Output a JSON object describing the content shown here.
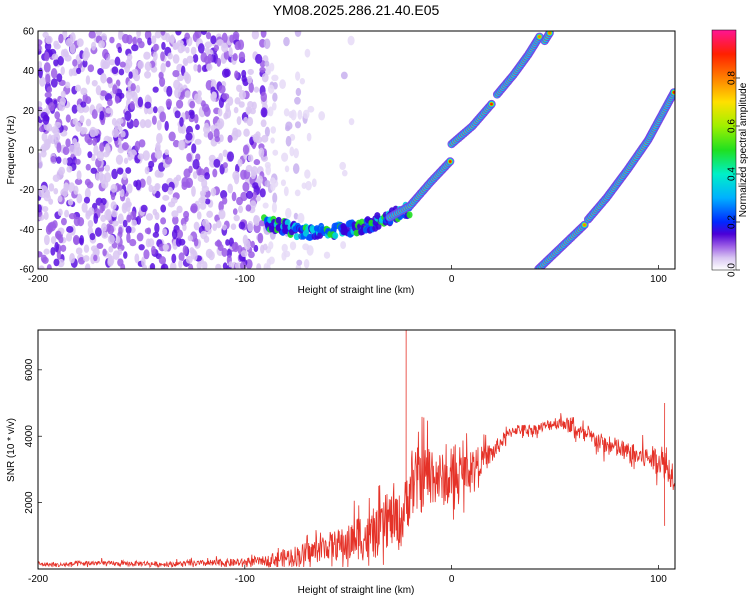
{
  "title": "YM08.2025.286.21.40.E05",
  "colorbar": {
    "label": "Normalized spectral amplitude",
    "ticks": [
      "0.0",
      "0.2",
      "0.4",
      "0.6",
      "0.8"
    ]
  },
  "colors": {
    "snr_line": "#e53228",
    "background": "#ffffff",
    "colormap": [
      "#ffffff",
      "#d9c6f2",
      "#9b5de5",
      "#4b00d6",
      "#0028ff",
      "#00b0ff",
      "#00f0c8",
      "#20e020",
      "#a0f000",
      "#ffe000",
      "#ff8000",
      "#ff2000",
      "#ff1493"
    ]
  },
  "chart_data": [
    {
      "type": "heatmap",
      "title": "YM08.2025.286.21.40.E05",
      "xlabel": "Height of straight line (km)",
      "ylabel": "Frequency (Hz)",
      "xlim": [
        -200,
        108
      ],
      "ylim": [
        -60,
        60
      ],
      "xticks": [
        "-200",
        "-100",
        "0",
        "100"
      ],
      "yticks": [
        "-60",
        "-40",
        "-20",
        "0",
        "20",
        "40",
        "60"
      ],
      "colorbar_label": "Normalized spectral amplitude",
      "colorbar_range": [
        0,
        1
      ],
      "noise_region": {
        "x": [
          -200,
          -68
        ],
        "y": [
          -60,
          60
        ],
        "amplitude": 0.1
      },
      "traces": [
        {
          "amplitude": 0.2,
          "points": [
            [
              -90,
              -37
            ],
            [
              -80,
              -39
            ],
            [
              -70,
              -42
            ],
            [
              -60,
              -41
            ],
            [
              -50,
              -40
            ],
            [
              -40,
              -38
            ],
            [
              -30,
              -34
            ],
            [
              -20,
              -30
            ]
          ]
        },
        {
          "amplitude": 0.9,
          "points": [
            [
              -30,
              -34
            ],
            [
              -20,
              -28
            ],
            [
              -10,
              -16
            ],
            [
              0,
              -5
            ]
          ]
        },
        {
          "amplitude": 0.9,
          "points": [
            [
              0,
              3
            ],
            [
              10,
              12
            ],
            [
              20,
              24
            ]
          ]
        },
        {
          "amplitude": 0.9,
          "points": [
            [
              22,
              28
            ],
            [
              30,
              38
            ],
            [
              37,
              48
            ],
            [
              43,
              58
            ]
          ]
        },
        {
          "amplitude": 0.9,
          "points": [
            [
              45,
              55
            ],
            [
              48,
              60
            ]
          ]
        },
        {
          "amplitude": 0.9,
          "points": [
            [
              42,
              -60
            ],
            [
              45,
              -57
            ]
          ]
        },
        {
          "amplitude": 0.9,
          "points": [
            [
              45,
              -57
            ],
            [
              55,
              -47
            ],
            [
              65,
              -37
            ]
          ]
        },
        {
          "amplitude": 0.9,
          "points": [
            [
              66,
              -35
            ],
            [
              75,
              -24
            ],
            [
              85,
              -10
            ],
            [
              95,
              5
            ],
            [
              108,
              30
            ]
          ]
        }
      ]
    },
    {
      "type": "line",
      "xlabel": "Height of straight line (km)",
      "ylabel": "SNR (10 * v/v)",
      "xlim": [
        -200,
        108
      ],
      "ylim": [
        0,
        7200
      ],
      "xticks": [
        "-200",
        "-100",
        "0",
        "100"
      ],
      "yticks": [
        "2000",
        "4000",
        "6000"
      ],
      "series": [
        {
          "x": [
            -200,
            -190,
            -180,
            -170,
            -160,
            -150,
            -140,
            -130,
            -120,
            -110,
            -100,
            -90,
            -80,
            -70,
            -60,
            -50,
            -45,
            -40,
            -35,
            -30,
            -25,
            -22,
            -20,
            -15,
            -10,
            -5,
            0,
            5,
            10,
            15,
            20,
            25,
            30,
            35,
            40,
            45,
            50,
            55,
            60,
            65,
            70,
            75,
            80,
            85,
            90,
            95,
            100,
            105,
            108
          ],
          "y": [
            150,
            120,
            160,
            180,
            150,
            170,
            140,
            160,
            170,
            180,
            200,
            250,
            350,
            450,
            700,
            750,
            1000,
            900,
            1100,
            1500,
            1400,
            1900,
            2500,
            2700,
            2900,
            2700,
            2600,
            2900,
            3100,
            3300,
            3500,
            3900,
            4200,
            4200,
            4200,
            4300,
            4400,
            4400,
            4200,
            4000,
            3900,
            3700,
            3650,
            3500,
            3400,
            3350,
            3300,
            3000,
            2800
          ],
          "noise": [
            80,
            80,
            100,
            100,
            80,
            100,
            90,
            100,
            120,
            150,
            140,
            180,
            350,
            450,
            500,
            700,
            900,
            900,
            900,
            1000,
            1100,
            1100,
            1300,
            1300,
            1200,
            1000,
            900,
            800,
            700,
            500,
            400,
            250,
            200,
            200,
            200,
            200,
            250,
            250,
            300,
            300,
            350,
            350,
            400,
            400,
            400,
            450,
            500,
            600,
            600
          ]
        }
      ],
      "spikes": [
        {
          "x": -22,
          "y": 7200
        },
        {
          "x": 103,
          "y": 5000
        },
        {
          "x": 103,
          "y": 1300
        }
      ]
    }
  ]
}
